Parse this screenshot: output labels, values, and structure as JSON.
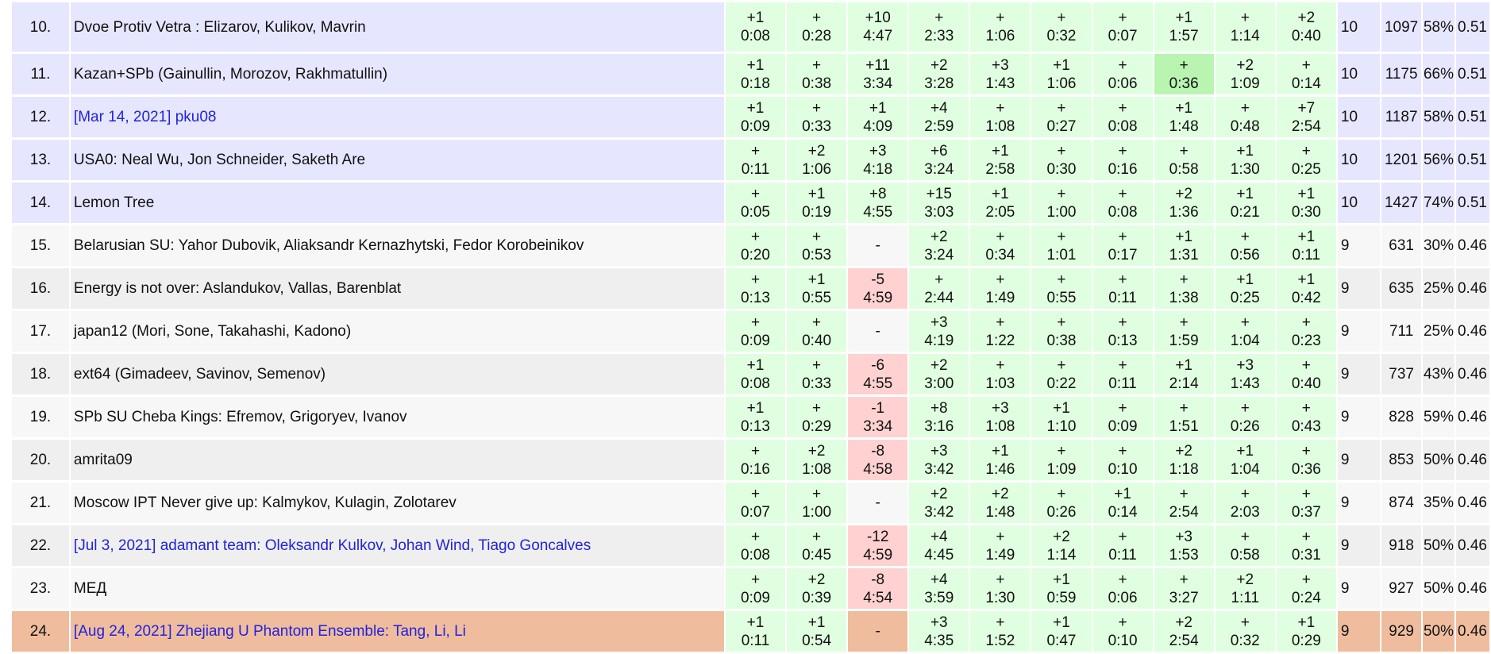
{
  "rows": [
    {
      "rank": "10.",
      "team": "Dvoe Protiv Vetra : Elizarov, Kulikov, Mavrin",
      "link": false,
      "zone": "medal",
      "probs": [
        [
          "+1",
          "0:08",
          "ok"
        ],
        [
          "+",
          "0:28",
          "ok"
        ],
        [
          "+10",
          "4:47",
          "ok"
        ],
        [
          "+",
          "2:33",
          "ok"
        ],
        [
          "+",
          "1:06",
          "ok"
        ],
        [
          "+",
          "0:32",
          "ok"
        ],
        [
          "+",
          "0:07",
          "ok"
        ],
        [
          "+1",
          "1:57",
          "ok"
        ],
        [
          "+",
          "1:14",
          "ok"
        ],
        [
          "+2",
          "0:40",
          "ok"
        ]
      ],
      "solved": "10",
      "penalty": "1097",
      "pct": "58%",
      "rating": "0.51"
    },
    {
      "rank": "11.",
      "team": "Kazan+SPb (Gainullin, Morozov, Rakhmatullin)",
      "link": false,
      "zone": "medal",
      "probs": [
        [
          "+1",
          "0:18",
          "ok"
        ],
        [
          "+",
          "0:38",
          "ok"
        ],
        [
          "+11",
          "3:34",
          "ok"
        ],
        [
          "+2",
          "3:28",
          "ok"
        ],
        [
          "+3",
          "1:43",
          "ok"
        ],
        [
          "+1",
          "1:06",
          "ok"
        ],
        [
          "+",
          "0:06",
          "ok"
        ],
        [
          "+",
          "0:36",
          "first-ok"
        ],
        [
          "+2",
          "1:09",
          "ok"
        ],
        [
          "+",
          "0:14",
          "ok"
        ]
      ],
      "solved": "10",
      "penalty": "1175",
      "pct": "66%",
      "rating": "0.51"
    },
    {
      "rank": "12.",
      "team": "[Mar 14, 2021] pku08",
      "link": true,
      "zone": "medal",
      "probs": [
        [
          "+1",
          "0:09",
          "ok"
        ],
        [
          "+",
          "0:33",
          "ok"
        ],
        [
          "+1",
          "4:09",
          "ok"
        ],
        [
          "+4",
          "2:59",
          "ok"
        ],
        [
          "+",
          "1:08",
          "ok"
        ],
        [
          "+",
          "0:27",
          "ok"
        ],
        [
          "+",
          "0:08",
          "ok"
        ],
        [
          "+1",
          "1:48",
          "ok"
        ],
        [
          "+",
          "0:48",
          "ok"
        ],
        [
          "+7",
          "2:54",
          "ok"
        ]
      ],
      "solved": "10",
      "penalty": "1187",
      "pct": "58%",
      "rating": "0.51"
    },
    {
      "rank": "13.",
      "team": "USA0: Neal Wu, Jon Schneider, Saketh Are",
      "link": false,
      "zone": "medal",
      "probs": [
        [
          "+",
          "0:11",
          "ok"
        ],
        [
          "+2",
          "1:06",
          "ok"
        ],
        [
          "+3",
          "4:18",
          "ok"
        ],
        [
          "+6",
          "3:24",
          "ok"
        ],
        [
          "+1",
          "2:58",
          "ok"
        ],
        [
          "+",
          "0:30",
          "ok"
        ],
        [
          "+",
          "0:16",
          "ok"
        ],
        [
          "+",
          "0:58",
          "ok"
        ],
        [
          "+1",
          "1:30",
          "ok"
        ],
        [
          "+",
          "0:25",
          "ok"
        ]
      ],
      "solved": "10",
      "penalty": "1201",
      "pct": "56%",
      "rating": "0.51"
    },
    {
      "rank": "14.",
      "team": "Lemon Tree",
      "link": false,
      "zone": "medal",
      "probs": [
        [
          "+",
          "0:05",
          "ok"
        ],
        [
          "+1",
          "0:19",
          "ok"
        ],
        [
          "+8",
          "4:55",
          "ok"
        ],
        [
          "+15",
          "3:03",
          "ok"
        ],
        [
          "+1",
          "2:05",
          "ok"
        ],
        [
          "+",
          "1:00",
          "ok"
        ],
        [
          "+",
          "0:08",
          "ok"
        ],
        [
          "+2",
          "1:36",
          "ok"
        ],
        [
          "+1",
          "0:21",
          "ok"
        ],
        [
          "+1",
          "0:30",
          "ok"
        ]
      ],
      "solved": "10",
      "penalty": "1427",
      "pct": "74%",
      "rating": "0.51"
    },
    {
      "rank": "15.",
      "team": "Belarusian SU: Yahor Dubovik, Aliaksandr Kernazhytski, Fedor Korobeinikov",
      "link": false,
      "zone": "odd",
      "probs": [
        [
          "+",
          "0:20",
          "ok"
        ],
        [
          "+",
          "0:53",
          "ok"
        ],
        [
          "-",
          "",
          "none"
        ],
        [
          "+2",
          "3:24",
          "ok"
        ],
        [
          "+",
          "0:34",
          "ok"
        ],
        [
          "+",
          "1:01",
          "ok"
        ],
        [
          "+",
          "0:17",
          "ok"
        ],
        [
          "+1",
          "1:31",
          "ok"
        ],
        [
          "+",
          "0:56",
          "ok"
        ],
        [
          "+1",
          "0:11",
          "ok"
        ]
      ],
      "solved": "9",
      "penalty": "631",
      "pct": "30%",
      "rating": "0.46"
    },
    {
      "rank": "16.",
      "team": "Energy is not over: Aslandukov, Vallas, Barenblat",
      "link": false,
      "zone": "even",
      "probs": [
        [
          "+",
          "0:13",
          "ok"
        ],
        [
          "+1",
          "0:55",
          "ok"
        ],
        [
          "-5",
          "4:59",
          "fail"
        ],
        [
          "+",
          "2:44",
          "ok"
        ],
        [
          "+",
          "1:49",
          "ok"
        ],
        [
          "+",
          "0:55",
          "ok"
        ],
        [
          "+",
          "0:11",
          "ok"
        ],
        [
          "+",
          "1:38",
          "ok"
        ],
        [
          "+1",
          "0:25",
          "ok"
        ],
        [
          "+1",
          "0:42",
          "ok"
        ]
      ],
      "solved": "9",
      "penalty": "635",
      "pct": "25%",
      "rating": "0.46"
    },
    {
      "rank": "17.",
      "team": "japan12 (Mori, Sone, Takahashi, Kadono)",
      "link": false,
      "zone": "odd",
      "probs": [
        [
          "+",
          "0:09",
          "ok"
        ],
        [
          "+",
          "0:40",
          "ok"
        ],
        [
          "-",
          "",
          "none"
        ],
        [
          "+3",
          "4:19",
          "ok"
        ],
        [
          "+",
          "1:22",
          "ok"
        ],
        [
          "+",
          "0:38",
          "ok"
        ],
        [
          "+",
          "0:13",
          "ok"
        ],
        [
          "+",
          "1:59",
          "ok"
        ],
        [
          "+",
          "1:04",
          "ok"
        ],
        [
          "+",
          "0:23",
          "ok"
        ]
      ],
      "solved": "9",
      "penalty": "711",
      "pct": "25%",
      "rating": "0.46"
    },
    {
      "rank": "18.",
      "team": "ext64 (Gimadeev, Savinov, Semenov)",
      "link": false,
      "zone": "even",
      "probs": [
        [
          "+1",
          "0:08",
          "ok"
        ],
        [
          "+",
          "0:33",
          "ok"
        ],
        [
          "-6",
          "4:55",
          "fail"
        ],
        [
          "+2",
          "3:00",
          "ok"
        ],
        [
          "+",
          "1:03",
          "ok"
        ],
        [
          "+",
          "0:22",
          "ok"
        ],
        [
          "+",
          "0:11",
          "ok"
        ],
        [
          "+1",
          "2:14",
          "ok"
        ],
        [
          "+3",
          "1:43",
          "ok"
        ],
        [
          "+",
          "0:40",
          "ok"
        ]
      ],
      "solved": "9",
      "penalty": "737",
      "pct": "43%",
      "rating": "0.46"
    },
    {
      "rank": "19.",
      "team": "SPb SU Cheba Kings: Efremov, Grigoryev, Ivanov",
      "link": false,
      "zone": "odd",
      "probs": [
        [
          "+1",
          "0:13",
          "ok"
        ],
        [
          "+",
          "0:29",
          "ok"
        ],
        [
          "-1",
          "3:34",
          "fail"
        ],
        [
          "+8",
          "3:16",
          "ok"
        ],
        [
          "+3",
          "1:08",
          "ok"
        ],
        [
          "+1",
          "1:10",
          "ok"
        ],
        [
          "+",
          "0:09",
          "ok"
        ],
        [
          "+",
          "1:51",
          "ok"
        ],
        [
          "+",
          "0:26",
          "ok"
        ],
        [
          "+",
          "0:43",
          "ok"
        ]
      ],
      "solved": "9",
      "penalty": "828",
      "pct": "59%",
      "rating": "0.46"
    },
    {
      "rank": "20.",
      "team": "amrita09",
      "link": false,
      "zone": "even",
      "probs": [
        [
          "+",
          "0:16",
          "ok"
        ],
        [
          "+2",
          "1:08",
          "ok"
        ],
        [
          "-8",
          "4:58",
          "fail"
        ],
        [
          "+3",
          "3:42",
          "ok"
        ],
        [
          "+1",
          "1:46",
          "ok"
        ],
        [
          "+",
          "1:09",
          "ok"
        ],
        [
          "+",
          "0:10",
          "ok"
        ],
        [
          "+2",
          "1:18",
          "ok"
        ],
        [
          "+1",
          "1:04",
          "ok"
        ],
        [
          "+",
          "0:36",
          "ok"
        ]
      ],
      "solved": "9",
      "penalty": "853",
      "pct": "50%",
      "rating": "0.46"
    },
    {
      "rank": "21.",
      "team": "Moscow IPT Never give up: Kalmykov, Kulagin, Zolotarev",
      "link": false,
      "zone": "odd",
      "probs": [
        [
          "+",
          "0:07",
          "ok"
        ],
        [
          "+",
          "1:00",
          "ok"
        ],
        [
          "-",
          "",
          "none"
        ],
        [
          "+2",
          "3:42",
          "ok"
        ],
        [
          "+2",
          "1:48",
          "ok"
        ],
        [
          "+",
          "0:26",
          "ok"
        ],
        [
          "+1",
          "0:14",
          "ok"
        ],
        [
          "+",
          "2:54",
          "ok"
        ],
        [
          "+",
          "2:03",
          "ok"
        ],
        [
          "+",
          "0:37",
          "ok"
        ]
      ],
      "solved": "9",
      "penalty": "874",
      "pct": "35%",
      "rating": "0.46"
    },
    {
      "rank": "22.",
      "team": "[Jul 3, 2021] adamant team: Oleksandr Kulkov, Johan Wind, Tiago Goncalves",
      "link": true,
      "zone": "even",
      "probs": [
        [
          "+",
          "0:08",
          "ok"
        ],
        [
          "+",
          "0:45",
          "ok"
        ],
        [
          "-12",
          "4:59",
          "fail"
        ],
        [
          "+4",
          "4:45",
          "ok"
        ],
        [
          "+",
          "1:49",
          "ok"
        ],
        [
          "+2",
          "1:14",
          "ok"
        ],
        [
          "+",
          "0:11",
          "ok"
        ],
        [
          "+3",
          "1:53",
          "ok"
        ],
        [
          "+",
          "0:58",
          "ok"
        ],
        [
          "+",
          "0:31",
          "ok"
        ]
      ],
      "solved": "9",
      "penalty": "918",
      "pct": "50%",
      "rating": "0.46"
    },
    {
      "rank": "23.",
      "team": "МЕД",
      "link": false,
      "zone": "odd",
      "probs": [
        [
          "+",
          "0:09",
          "ok"
        ],
        [
          "+2",
          "0:39",
          "ok"
        ],
        [
          "-8",
          "4:54",
          "fail"
        ],
        [
          "+4",
          "3:59",
          "ok"
        ],
        [
          "+",
          "1:30",
          "ok"
        ],
        [
          "+1",
          "0:59",
          "ok"
        ],
        [
          "+",
          "0:06",
          "ok"
        ],
        [
          "+",
          "3:27",
          "ok"
        ],
        [
          "+2",
          "1:11",
          "ok"
        ],
        [
          "+",
          "0:24",
          "ok"
        ]
      ],
      "solved": "9",
      "penalty": "927",
      "pct": "50%",
      "rating": "0.46"
    },
    {
      "rank": "24.",
      "team": "[Aug 24, 2021] Zhejiang U Phantom Ensemble: Tang, Li, Li",
      "link": true,
      "zone": "bronze",
      "probs": [
        [
          "+1",
          "0:11",
          "ok"
        ],
        [
          "+1",
          "0:54",
          "ok"
        ],
        [
          "-",
          "",
          "none"
        ],
        [
          "+3",
          "4:35",
          "ok"
        ],
        [
          "+",
          "1:52",
          "ok"
        ],
        [
          "+1",
          "0:47",
          "ok"
        ],
        [
          "+",
          "0:10",
          "ok"
        ],
        [
          "+2",
          "2:54",
          "ok"
        ],
        [
          "+",
          "0:32",
          "ok"
        ],
        [
          "+1",
          "0:29",
          "ok"
        ]
      ],
      "solved": "9",
      "penalty": "929",
      "pct": "50%",
      "rating": "0.46"
    }
  ],
  "colors": {
    "medal": "#e6e6ff",
    "odd": "#f7f7f7",
    "even": "#efefef",
    "bronze": "#efbd9e",
    "ok": "#e0ffe0",
    "first_ok": "#b9f5b1",
    "fail": "#ffd1d1",
    "link": "#2222dd"
  }
}
